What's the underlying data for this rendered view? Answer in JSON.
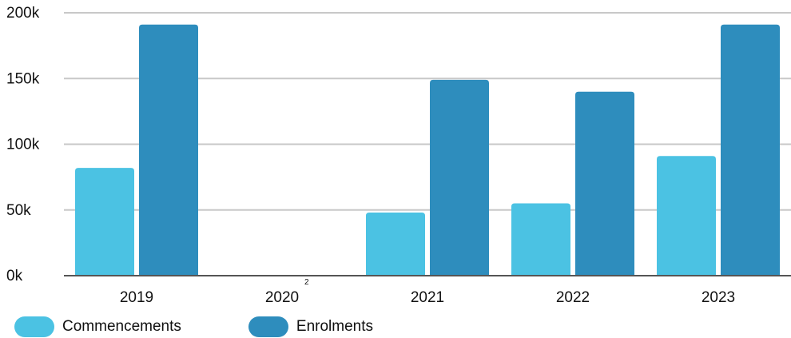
{
  "chart_data": {
    "type": "bar",
    "categories": [
      "2019",
      "2020",
      "2021",
      "2022",
      "2023"
    ],
    "category_footnotes": [
      "",
      "2",
      "",
      "",
      ""
    ],
    "series": [
      {
        "name": "Commencements",
        "color": "#4bc2e3",
        "values": [
          82000,
          0,
          48000,
          55000,
          91000
        ]
      },
      {
        "name": "Enrolments",
        "color": "#2e8dbd",
        "values": [
          191000,
          0,
          149000,
          140000,
          191000
        ]
      }
    ],
    "yticks": [
      "0k",
      "50k",
      "100k",
      "150k",
      "200k"
    ],
    "ylim": [
      0,
      200000
    ],
    "grid": true,
    "legend_position": "bottom-left"
  }
}
